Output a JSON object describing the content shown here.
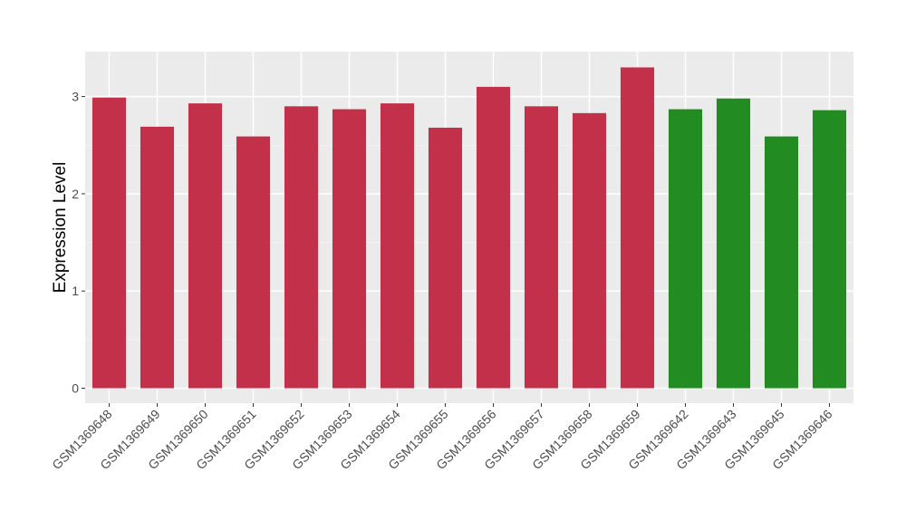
{
  "chart_data": {
    "type": "bar",
    "title": "",
    "xlabel": "",
    "ylabel": "Expression Level",
    "ylim": [
      0,
      3.45
    ],
    "yticks": [
      0,
      1,
      2,
      3
    ],
    "grid": true,
    "categories": [
      "GSM1369648",
      "GSM1369649",
      "GSM1369650",
      "GSM1369651",
      "GSM1369652",
      "GSM1369653",
      "GSM1369654",
      "GSM1369655",
      "GSM1369656",
      "GSM1369657",
      "GSM1369658",
      "GSM1369659",
      "GSM1369642",
      "GSM1369643",
      "GSM1369645",
      "GSM1369646"
    ],
    "values": [
      2.99,
      2.69,
      2.93,
      2.59,
      2.9,
      2.87,
      2.93,
      2.68,
      3.1,
      2.9,
      2.83,
      3.3,
      2.87,
      2.98,
      2.59,
      2.86
    ],
    "bar_colors": [
      "#c3304a",
      "#c3304a",
      "#c3304a",
      "#c3304a",
      "#c3304a",
      "#c3304a",
      "#c3304a",
      "#c3304a",
      "#c3304a",
      "#c3304a",
      "#c3304a",
      "#c3304a",
      "#228b22",
      "#228b22",
      "#228b22",
      "#228b22"
    ],
    "panel_background": "#ebebeb"
  }
}
